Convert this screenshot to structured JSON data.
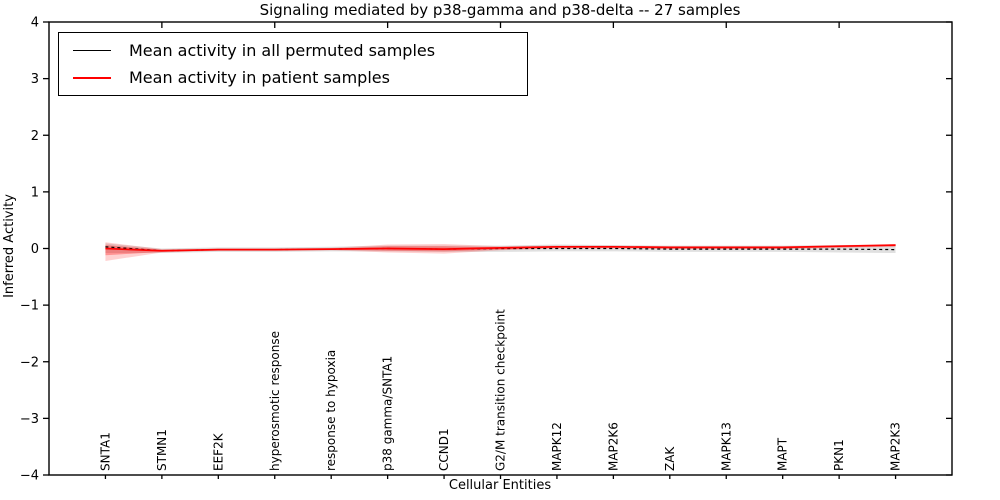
{
  "chart_data": {
    "type": "line",
    "title": "Signaling mediated by p38-gamma and p38-delta -- 27 samples",
    "xlabel": "Cellular Entities",
    "ylabel": "Inferred Activity",
    "xlim": [
      0,
      16
    ],
    "ylim": [
      -4,
      4
    ],
    "yticks": [
      4,
      3,
      2,
      1,
      0,
      -1,
      -2,
      -3,
      -4
    ],
    "top_ticks_x": [
      2,
      4,
      6,
      8,
      10,
      12,
      14
    ],
    "grid": false,
    "legend_position": "upper-left",
    "categories": [
      "SNTA1",
      "STMN1",
      "EEF2K",
      "hyperosmotic response",
      "response to hypoxia",
      "p38 gamma/SNTA1",
      "CCND1",
      "G2/M transition checkpoint",
      "MAPK12",
      "MAP2K6",
      "ZAK",
      "MAPK13",
      "MAPT",
      "PKN1",
      "MAP2K3"
    ],
    "x": [
      1,
      2,
      3,
      4,
      5,
      6,
      7,
      8,
      9,
      10,
      11,
      12,
      13,
      14,
      15
    ],
    "series": [
      {
        "name": "Mean activity in all permuted samples",
        "color": "#000000",
        "style": "dashed",
        "values": [
          0.03,
          -0.04,
          -0.02,
          -0.02,
          -0.01,
          0.0,
          -0.01,
          0.0,
          0.0,
          0.0,
          -0.01,
          -0.01,
          -0.01,
          -0.01,
          -0.02
        ]
      },
      {
        "name": "Mean activity in patient samples",
        "color": "#ff0000",
        "style": "solid",
        "values": [
          0.0,
          -0.04,
          -0.02,
          -0.02,
          -0.01,
          0.0,
          -0.01,
          0.01,
          0.03,
          0.03,
          0.02,
          0.02,
          0.02,
          0.04,
          0.06
        ]
      }
    ],
    "bands": [
      {
        "name": "permuted-samples-range",
        "color": "#999999",
        "opacity": 0.3,
        "upper": [
          0.09,
          0.0,
          0.02,
          0.02,
          0.03,
          0.05,
          0.05,
          0.05,
          0.07,
          0.06,
          0.05,
          0.05,
          0.05,
          0.06,
          0.06
        ],
        "lower": [
          -0.08,
          -0.08,
          -0.06,
          -0.06,
          -0.05,
          -0.05,
          -0.06,
          -0.06,
          -0.05,
          -0.05,
          -0.06,
          -0.06,
          -0.06,
          -0.07,
          -0.08
        ]
      },
      {
        "name": "patient-samples-range-outer",
        "color": "#ff0000",
        "opacity": 0.18,
        "upper": [
          0.11,
          -0.01,
          0.0,
          0.0,
          0.01,
          0.07,
          0.08,
          0.04,
          0.05,
          0.05,
          0.04,
          0.04,
          0.04,
          0.06,
          0.08
        ],
        "lower": [
          -0.22,
          -0.07,
          -0.04,
          -0.04,
          -0.03,
          -0.07,
          -0.09,
          -0.03,
          0.0,
          0.0,
          -0.01,
          -0.01,
          -0.01,
          0.01,
          0.03
        ]
      },
      {
        "name": "patient-samples-range-inner",
        "color": "#ff0000",
        "opacity": 0.3,
        "upper": [
          0.06,
          -0.02,
          -0.01,
          -0.01,
          0.0,
          0.04,
          0.04,
          0.02,
          0.04,
          0.04,
          0.03,
          0.03,
          0.03,
          0.05,
          0.07
        ],
        "lower": [
          -0.12,
          -0.06,
          -0.03,
          -0.03,
          -0.02,
          -0.04,
          -0.05,
          -0.02,
          0.01,
          0.01,
          0.0,
          0.0,
          0.0,
          0.02,
          0.04
        ]
      }
    ]
  }
}
